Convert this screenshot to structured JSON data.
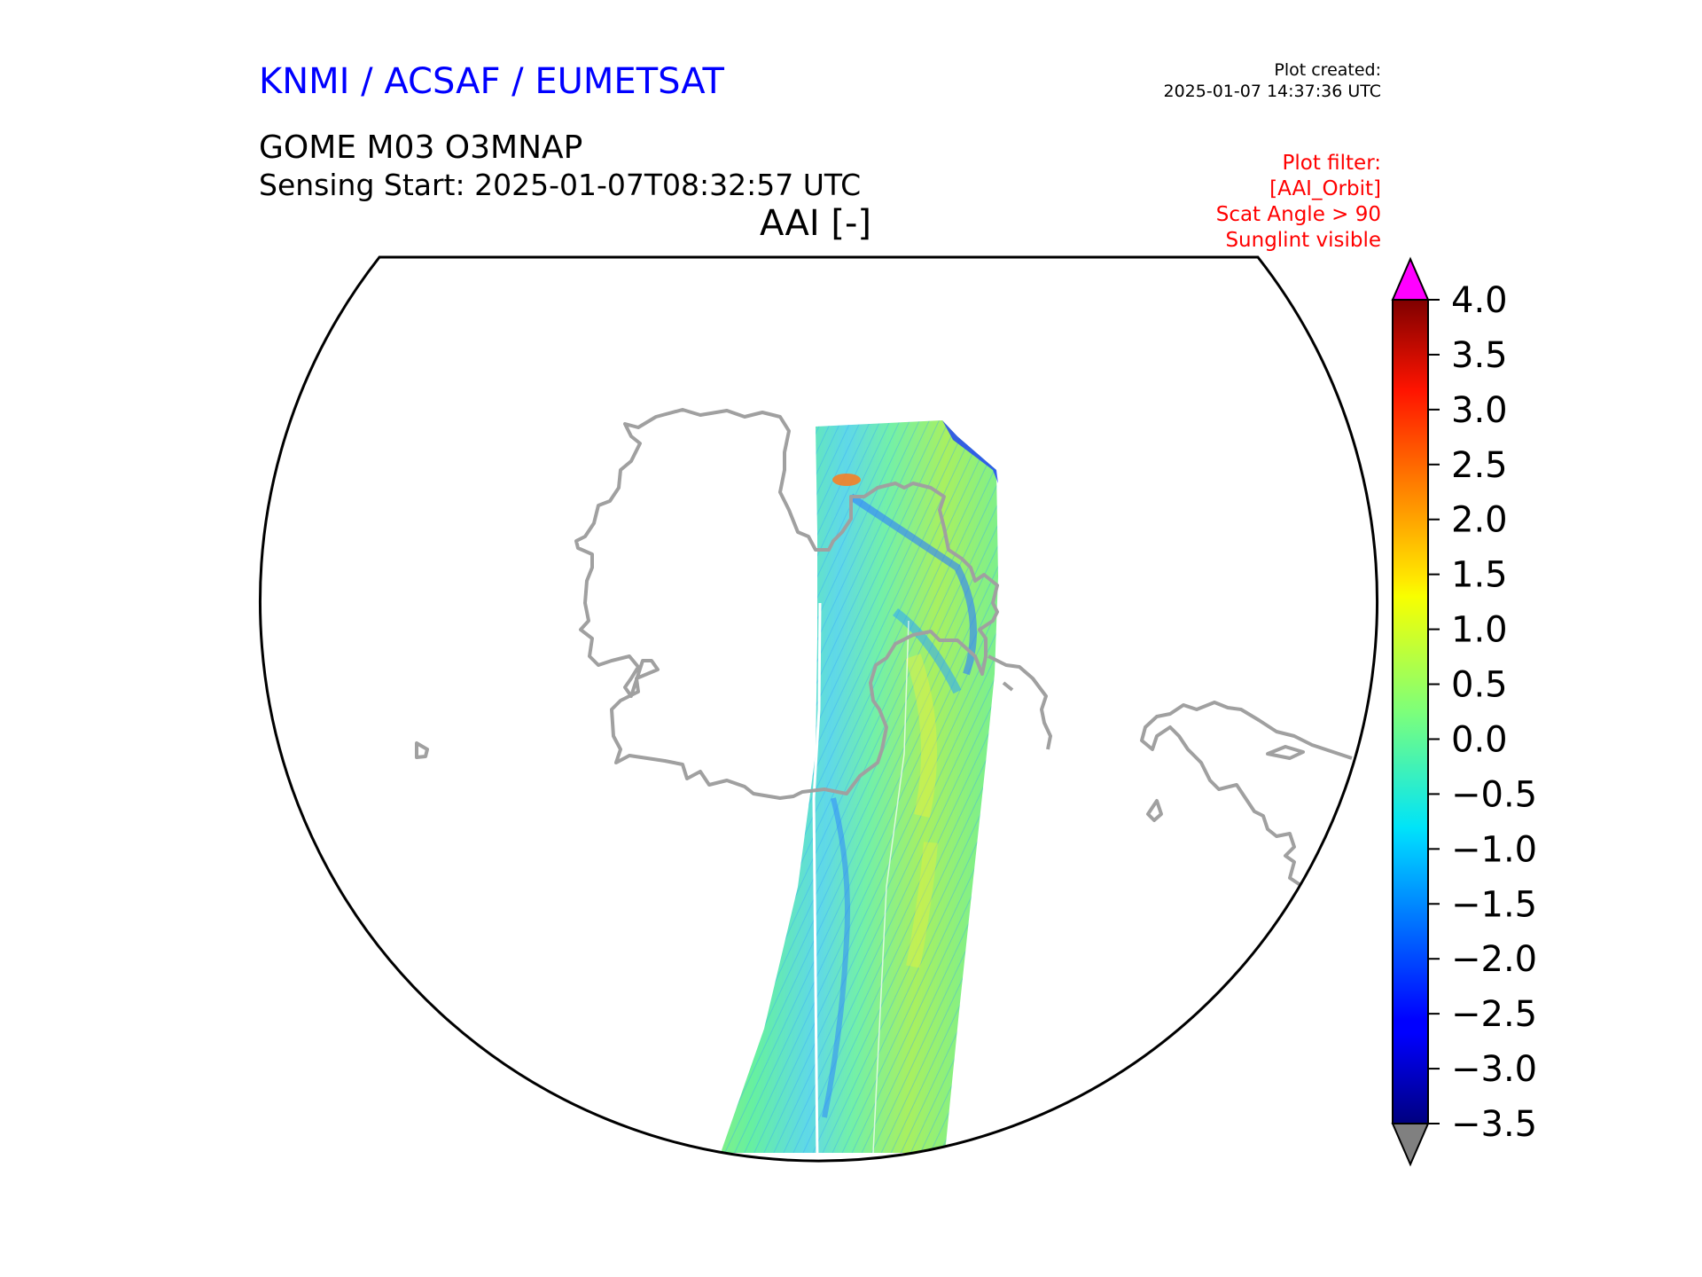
{
  "header": {
    "org": "KNMI / ACSAF / EUMETSAT",
    "created_label": "Plot created:",
    "created_time": "2025-01-07 14:37:36 UTC",
    "product": "GOME M03 O3MNAP",
    "sensing": "Sensing Start: 2025-01-07T08:32:57 UTC",
    "variable": "AAI [-]"
  },
  "filter": {
    "lines": [
      "Plot filter:",
      "[AAI_Orbit]",
      "Scat Angle > 90",
      "Sunglint visible"
    ]
  },
  "colors": {
    "org": "#0000ff",
    "filter": "#ff0000",
    "coast": "#a0a0a0",
    "over": "#ff00ff",
    "under": "#808080"
  },
  "colorbar": {
    "min": -3.5,
    "max": 4.0,
    "ticks": [
      4.0,
      3.5,
      3.0,
      2.5,
      2.0,
      1.5,
      1.0,
      0.5,
      0.0,
      -0.5,
      -1.0,
      -1.5,
      -2.0,
      -2.5,
      -3.0,
      -3.5
    ],
    "tick_labels": [
      "4.0",
      "3.5",
      "3.0",
      "2.5",
      "2.0",
      "1.5",
      "1.0",
      "0.5",
      "0.0",
      "−0.5",
      "−1.0",
      "−1.5",
      "−2.0",
      "−2.5",
      "−3.0",
      "−3.5"
    ],
    "colormap": "jet",
    "extend": "both"
  },
  "map": {
    "projection": "polar (north)",
    "coastlines": true,
    "data": "satellite swath, AAI values mostly -1.5 to 1.5"
  }
}
